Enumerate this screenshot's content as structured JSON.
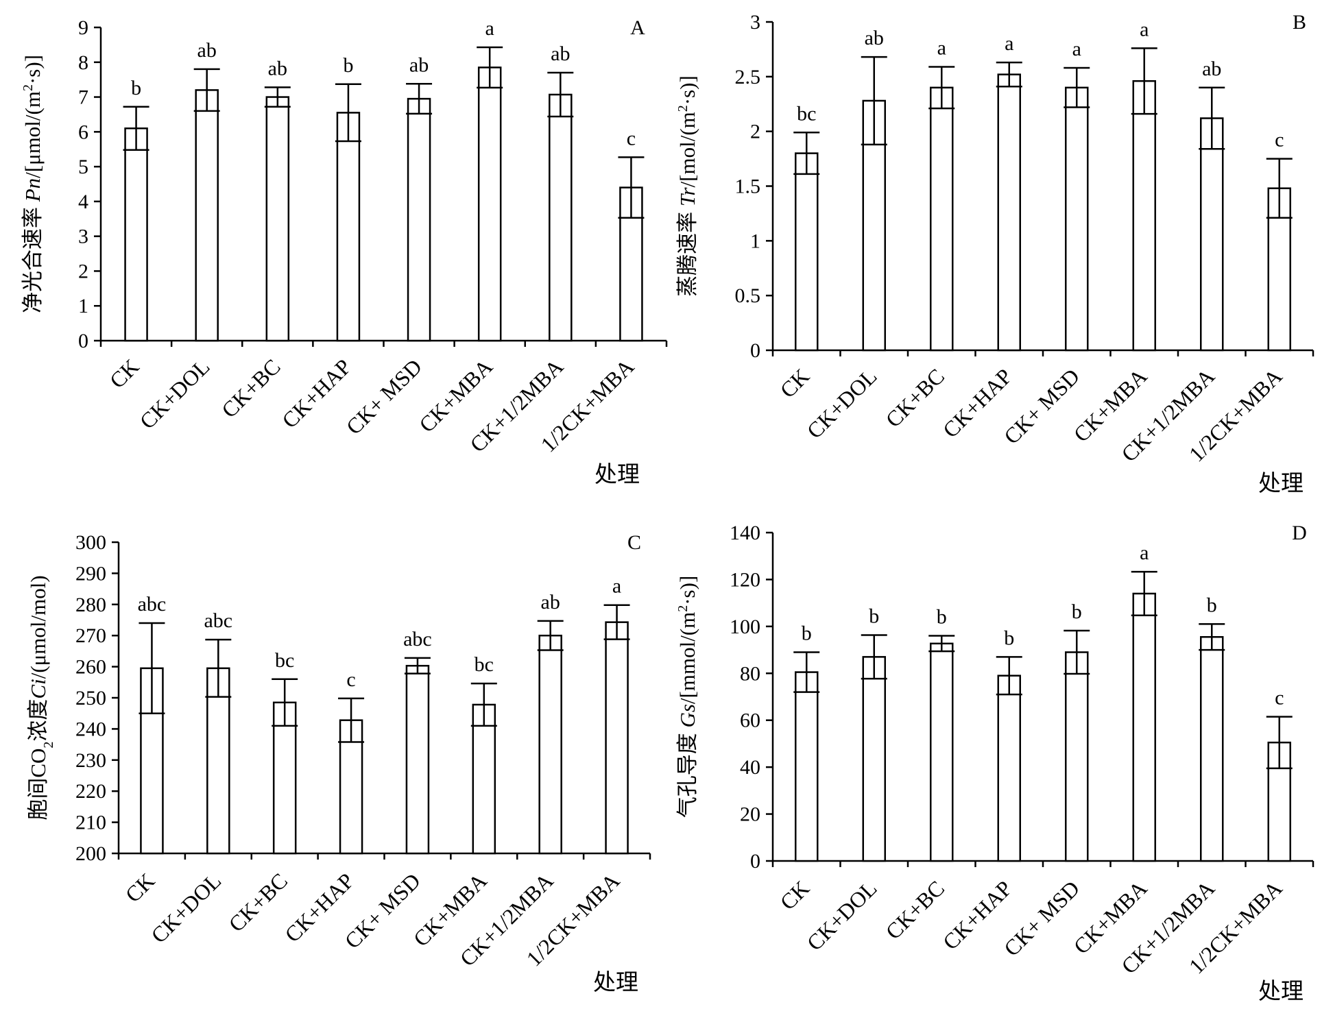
{
  "categories": [
    "CK",
    "CK+DOL",
    "CK+BC",
    "CK+HAP",
    "CK+ MSD",
    "CK+MBA",
    "CK+1/2MBA",
    "1/2CK+MBA"
  ],
  "chart_data": [
    {
      "panel": "A",
      "type": "bar",
      "ylabel_parts": [
        {
          "text": "净光合速率 ",
          "italic": false,
          "sup": false
        },
        {
          "text": "Pn",
          "italic": true,
          "sup": false
        },
        {
          "text": "/[μmol/(m",
          "italic": false,
          "sup": false
        },
        {
          "text": "2",
          "italic": false,
          "sup": true
        },
        {
          "text": "·s)]",
          "italic": false,
          "sup": false
        }
      ],
      "xlabel": "处理",
      "ylim": [
        0,
        9
      ],
      "yticks": [
        0,
        1,
        2,
        3,
        4,
        5,
        6,
        7,
        8,
        9
      ],
      "values": [
        6.1,
        7.2,
        7.0,
        6.55,
        6.95,
        7.85,
        7.07,
        4.4
      ],
      "errors": [
        0.62,
        0.6,
        0.28,
        0.82,
        0.43,
        0.58,
        0.63,
        0.87
      ],
      "letters": [
        "b",
        "ab",
        "ab",
        "b",
        "ab",
        "a",
        "ab",
        "c"
      ]
    },
    {
      "panel": "B",
      "type": "bar",
      "ylabel_parts": [
        {
          "text": "蒸腾速率 ",
          "italic": false,
          "sup": false
        },
        {
          "text": "Tr",
          "italic": true,
          "sup": false
        },
        {
          "text": "/[mol/(m",
          "italic": false,
          "sup": false
        },
        {
          "text": "2",
          "italic": false,
          "sup": true
        },
        {
          "text": "·s)]",
          "italic": false,
          "sup": false
        }
      ],
      "xlabel": "处理",
      "ylim": [
        0,
        3
      ],
      "yticks": [
        0,
        0.5,
        1,
        1.5,
        2,
        2.5,
        3
      ],
      "values": [
        1.8,
        2.28,
        2.4,
        2.52,
        2.4,
        2.46,
        2.12,
        1.48
      ],
      "errors": [
        0.19,
        0.4,
        0.19,
        0.11,
        0.18,
        0.3,
        0.28,
        0.27
      ],
      "letters": [
        "bc",
        "ab",
        "a",
        "a",
        "a",
        "a",
        "ab",
        "c"
      ]
    },
    {
      "panel": "C",
      "type": "bar",
      "ylabel_parts": [
        {
          "text": "胞间CO",
          "italic": false,
          "sup": false
        },
        {
          "text": "2",
          "italic": false,
          "sub": true
        },
        {
          "text": "浓度",
          "italic": false,
          "sup": false
        },
        {
          "text": "Ci",
          "italic": true,
          "sup": false
        },
        {
          "text": "/(μmol/mol)",
          "italic": false,
          "sup": false
        }
      ],
      "xlabel": "处理",
      "ylim": [
        200,
        300
      ],
      "yticks": [
        200,
        210,
        220,
        230,
        240,
        250,
        260,
        270,
        280,
        290,
        300
      ],
      "values": [
        259.5,
        259.5,
        248.5,
        242.8,
        260.3,
        247.8,
        270.0,
        274.3
      ],
      "errors": [
        14.5,
        9.2,
        7.5,
        7.0,
        2.5,
        6.8,
        4.7,
        5.5
      ],
      "letters": [
        "abc",
        "abc",
        "bc",
        "c",
        "abc",
        "bc",
        "ab",
        "a"
      ]
    },
    {
      "panel": "D",
      "type": "bar",
      "ylabel_parts": [
        {
          "text": "气孔导度 ",
          "italic": false,
          "sup": false
        },
        {
          "text": "Gs",
          "italic": true,
          "sup": false
        },
        {
          "text": "/[mmol/(m",
          "italic": false,
          "sup": false
        },
        {
          "text": "2",
          "italic": false,
          "sup": true
        },
        {
          "text": "·s)]",
          "italic": false,
          "sup": false
        }
      ],
      "xlabel": "处理",
      "ylim": [
        0,
        140
      ],
      "yticks": [
        0,
        20,
        40,
        60,
        80,
        100,
        120,
        140
      ],
      "values": [
        80.5,
        87.0,
        92.7,
        79.0,
        89.0,
        114.0,
        95.5,
        50.5
      ],
      "errors": [
        8.5,
        9.3,
        3.3,
        8.0,
        9.2,
        9.3,
        5.5,
        11.0
      ],
      "letters": [
        "b",
        "b",
        "b",
        "b",
        "b",
        "a",
        "b",
        "c"
      ]
    }
  ]
}
